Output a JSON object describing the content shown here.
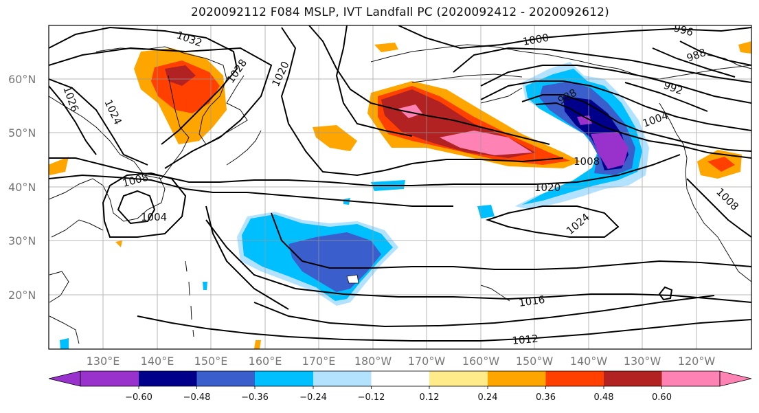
{
  "title": "2020092112 F084 MSLP, IVT Landfall PC (2020092412 - 2020092612)",
  "lat_labels": [
    "60°N",
    "50°N",
    "40°N",
    "30°N",
    "20°N"
  ],
  "lon_labels": [
    "130°E",
    "140°E",
    "150°E",
    "160°E",
    "170°E",
    "180°W",
    "170°W",
    "160°W",
    "150°W",
    "140°W",
    "130°W",
    "120°W"
  ],
  "isobar_labels": [
    "1032",
    "1028",
    "1020",
    "1026",
    "1024",
    "1000",
    "996",
    "988",
    "992",
    "988",
    "1004",
    "1008",
    "1008",
    "1004",
    "1020",
    "1024",
    "1008",
    "1016",
    "1012"
  ],
  "colorbar": {
    "ticks": [
      "−0.60",
      "−0.48",
      "−0.36",
      "−0.24",
      "−0.12",
      "0.12",
      "0.24",
      "0.36",
      "0.48",
      "0.60"
    ],
    "colors": [
      "#9932CC",
      "#00008B",
      "#3A5FCD",
      "#00BFFF",
      "#B2E2FF",
      "#FFFFFF",
      "#FFEB8A",
      "#FFA500",
      "#FF4000",
      "#B22222",
      "#FF82B4"
    ]
  }
}
